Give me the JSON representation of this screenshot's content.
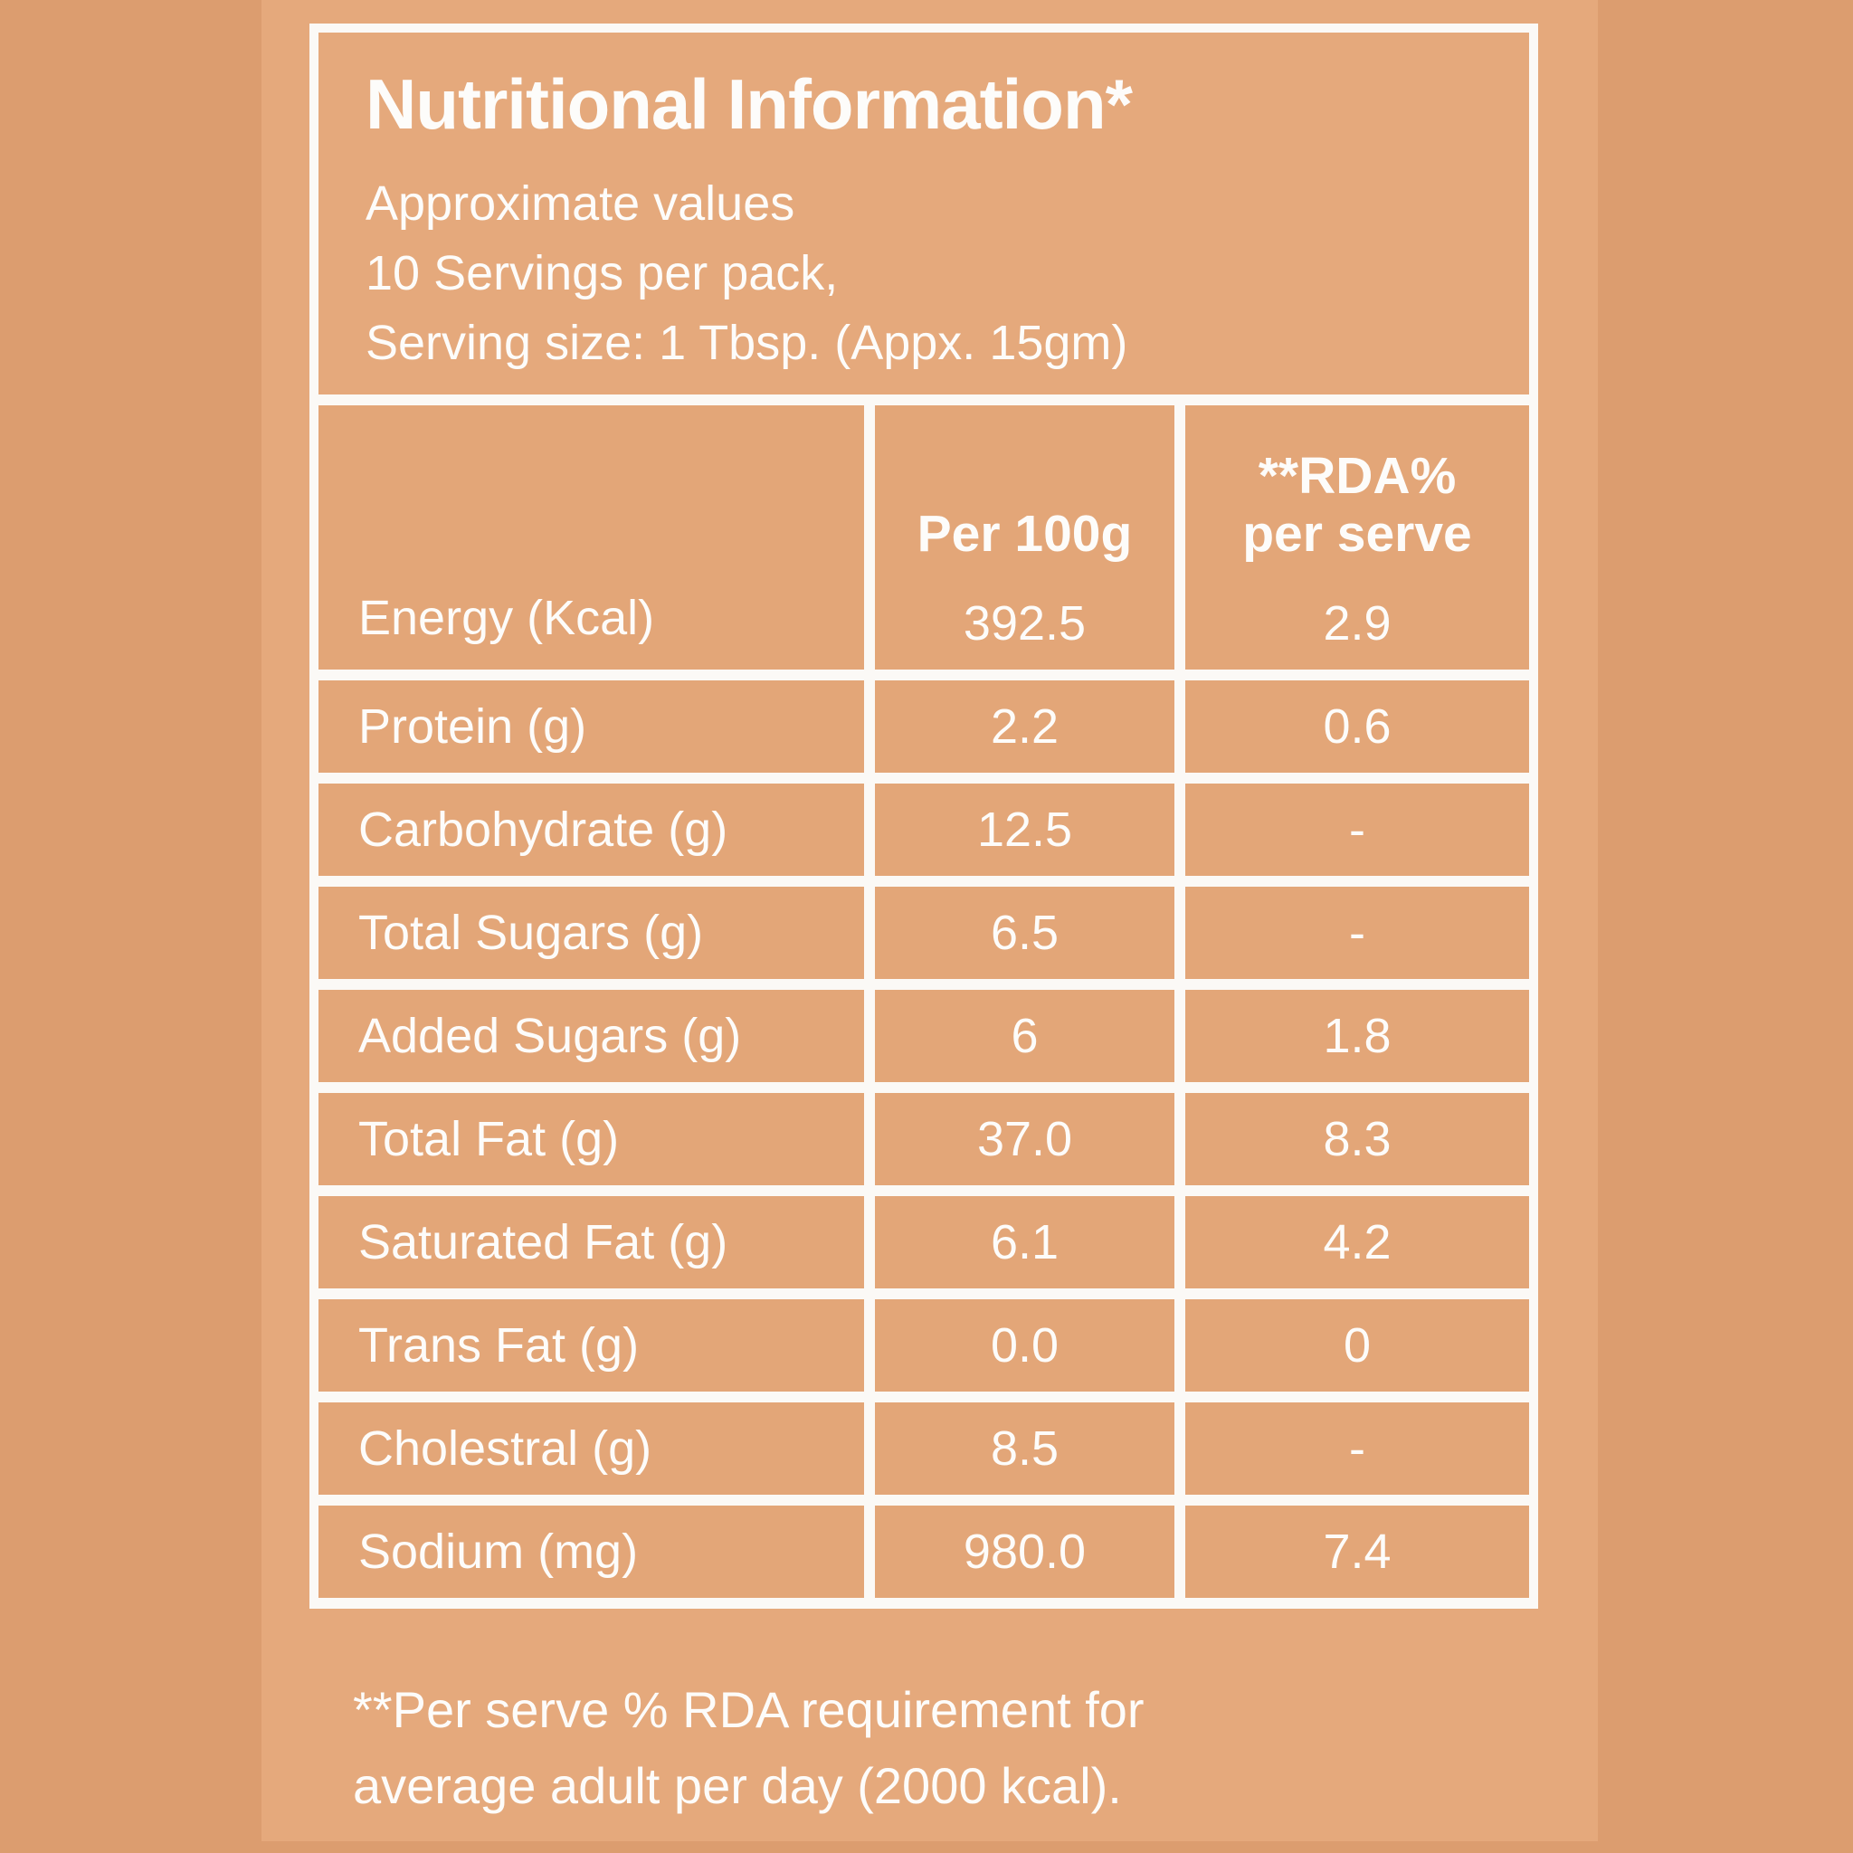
{
  "colors": {
    "background_outer": "#dc9d6f",
    "background_panel": "#e5a97c",
    "cell": "#e3a678",
    "line_white": "#fbf9f6",
    "text": "#fdfcfa"
  },
  "header": {
    "title": "Nutritional Information*",
    "subtitle_lines": [
      "Approximate values",
      "10 Servings per pack,",
      "Serving size: 1 Tbsp. (Appx. 15gm)"
    ]
  },
  "table": {
    "column_headers": {
      "per_100g": "Per 100g",
      "rda_line1": "**RDA%",
      "rda_line2": "per serve"
    },
    "rows": [
      {
        "label": "Energy (Kcal)",
        "per_100g": "392.5",
        "rda_per_serve": "2.9"
      },
      {
        "label": "Protein (g)",
        "per_100g": "2.2",
        "rda_per_serve": "0.6"
      },
      {
        "label": "Carbohydrate (g)",
        "per_100g": "12.5",
        "rda_per_serve": "-"
      },
      {
        "label": "Total Sugars (g)",
        "per_100g": "6.5",
        "rda_per_serve": "-"
      },
      {
        "label": "Added Sugars (g)",
        "per_100g": "6",
        "rda_per_serve": "1.8"
      },
      {
        "label": "Total Fat (g)",
        "per_100g": "37.0",
        "rda_per_serve": "8.3"
      },
      {
        "label": "Saturated Fat (g)",
        "per_100g": "6.1",
        "rda_per_serve": "4.2"
      },
      {
        "label": "Trans Fat (g)",
        "per_100g": "0.0",
        "rda_per_serve": "0"
      },
      {
        "label": "Cholestral (g)",
        "per_100g": "8.5",
        "rda_per_serve": "-"
      },
      {
        "label": "Sodium (mg)",
        "per_100g": "980.0",
        "rda_per_serve": "7.4"
      }
    ]
  },
  "footnote": {
    "lines": [
      "**Per serve % RDA requirement for",
      "average adult per day (2000 kcal)."
    ]
  }
}
